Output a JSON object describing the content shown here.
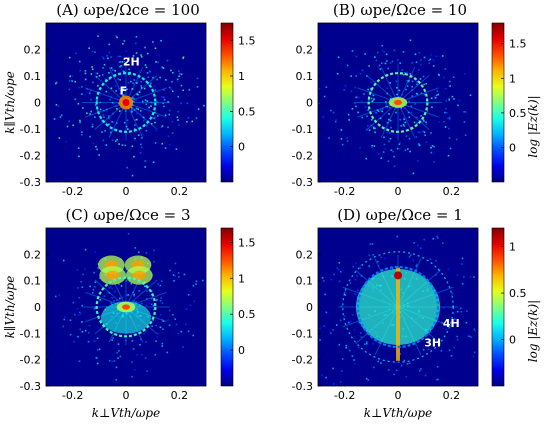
{
  "colors": {
    "background_field": "#00008f",
    "ring": "#5cc8ff",
    "hot": "#ffe033",
    "annotation_text": "#ffffff"
  },
  "colormap": "jet",
  "chart_data": [
    {
      "type": "heatmap",
      "title": "(A) ωpe/Ωce = 100",
      "xlabel": "",
      "ylabel": "k∥Vth/ωpe",
      "colorbar_label": "",
      "xlim": [
        -0.3,
        0.3
      ],
      "ylim": [
        -0.3,
        0.3
      ],
      "x_ticks": [
        "-0.2",
        "0",
        "0.2"
      ],
      "y_ticks": [
        "0.2",
        "0.1",
        "0",
        "-0.1",
        "-0.2",
        "-0.3"
      ],
      "colorbar_range": [
        -0.5,
        1.75
      ],
      "colorbar_ticks": [
        "1.5",
        "1",
        "0.5",
        "0"
      ],
      "colorbar_tick_values": [
        1.5,
        1,
        0.5,
        0
      ],
      "features": {
        "ring_radius": 0.11,
        "core": "bright",
        "intensity": 0.85,
        "blobs": false,
        "ring_brightness": 0.7
      },
      "annotations": [
        {
          "text": "2H",
          "x": 0.02,
          "y": 0.14
        },
        {
          "text": "F",
          "x": -0.01,
          "y": 0.03
        }
      ]
    },
    {
      "type": "heatmap",
      "title": "(B) ωpe/Ωce = 10",
      "xlabel": "",
      "ylabel": "",
      "colorbar_label": "log |Ez(k)|",
      "xlim": [
        -0.3,
        0.3
      ],
      "ylim": [
        -0.3,
        0.3
      ],
      "x_ticks": [
        "-0.2",
        "0",
        "0.2"
      ],
      "y_ticks": [
        "0.2",
        "0.1",
        "0",
        "-0.1",
        "-0.2",
        "-0.3"
      ],
      "colorbar_range": [
        -0.5,
        1.8
      ],
      "colorbar_ticks": [
        "1.5",
        "1",
        "0.5",
        "0"
      ],
      "colorbar_tick_values": [
        1.5,
        1,
        0.5,
        0
      ],
      "features": {
        "ring_radius": 0.11,
        "core": "medium",
        "intensity": 0.65,
        "blobs": false,
        "ring_brightness": 0.85
      },
      "annotations": []
    },
    {
      "type": "heatmap",
      "title": "(C) ωpe/Ωce = 3",
      "xlabel": "k⊥Vth/ωpe",
      "ylabel": "k∥Vth/ωpe",
      "colorbar_label": "",
      "xlim": [
        -0.3,
        0.3
      ],
      "ylim": [
        -0.3,
        0.3
      ],
      "x_ticks": [
        "-0.2",
        "0",
        "0.2"
      ],
      "y_ticks": [
        "0.2",
        "0.1",
        "0",
        "-0.1",
        "-0.2",
        "-0.3"
      ],
      "colorbar_range": [
        -0.5,
        1.7
      ],
      "colorbar_ticks": [
        "1.5",
        "1",
        "0.5",
        "0"
      ],
      "colorbar_tick_values": [
        1.5,
        1,
        0.5,
        0
      ],
      "features": {
        "ring_radius": 0.11,
        "core": "medium",
        "intensity": 0.55,
        "blobs": true,
        "ring_brightness": 0.8
      },
      "annotations": []
    },
    {
      "type": "heatmap",
      "title": "(D) ωpe/Ωce = 1",
      "xlabel": "k⊥Vth/ωpe",
      "ylabel": "",
      "colorbar_label": "log |Ez(k)|",
      "xlim": [
        -0.3,
        0.3
      ],
      "ylim": [
        -0.3,
        0.3
      ],
      "x_ticks": [
        "-0.2",
        "0",
        "0.2"
      ],
      "y_ticks": [
        "0.2",
        "0.1",
        "0",
        "-0.1",
        "-0.2",
        "-0.3"
      ],
      "colorbar_range": [
        -0.5,
        1.2
      ],
      "colorbar_ticks": [
        "1",
        "0.5",
        "0"
      ],
      "colorbar_tick_values": [
        1,
        0.5,
        0
      ],
      "features": {
        "ring_radius": 0.15,
        "core": "column",
        "intensity": 0.45,
        "blobs": false,
        "ring_brightness": 0.45
      },
      "annotations": [
        {
          "text": "4H",
          "x": 0.2,
          "y": -0.075
        },
        {
          "text": "3H",
          "x": 0.13,
          "y": -0.15
        }
      ]
    }
  ]
}
